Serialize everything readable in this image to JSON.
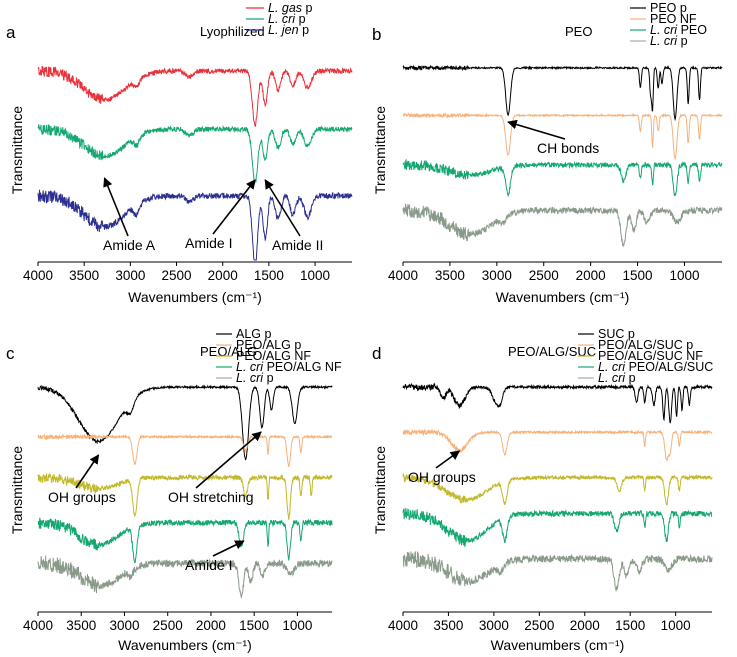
{
  "figure": {
    "panels": [
      "a",
      "b",
      "c",
      "d"
    ]
  },
  "chart_data": [
    {
      "id": "a",
      "panel_label": "a",
      "type": "line",
      "title": "Lyophilized",
      "xlabel": "Wavenumbers (cm⁻¹)",
      "ylabel": "Transmittance",
      "x_reversed": true,
      "xlim": [
        4000,
        600
      ],
      "xticks": [
        "4000",
        "3500",
        "3000",
        "2500",
        "2000",
        "1500",
        "1000"
      ],
      "xtick_values": [
        4000,
        3500,
        3000,
        2500,
        2000,
        1500,
        1000
      ],
      "legend": [
        {
          "italic": "L. gas",
          "suffix": " p",
          "color": "#e8313a"
        },
        {
          "italic": "L. cri",
          "suffix": " p",
          "color": "#14a870"
        },
        {
          "italic": "L. jen",
          "suffix": " p",
          "color": "#2b2f8f"
        }
      ],
      "series": [
        {
          "legend_index": 0,
          "color": "#e8313a",
          "baseline": 0.12,
          "noise": 0.012,
          "peaks": [
            [
              3280,
              0.14,
              220
            ],
            [
              2930,
              0.04,
              30
            ],
            [
              2360,
              0.03,
              40
            ],
            [
              1650,
              0.26,
              30
            ],
            [
              1540,
              0.16,
              25
            ],
            [
              1400,
              0.09,
              30
            ],
            [
              1240,
              0.07,
              30
            ],
            [
              1080,
              0.08,
              40
            ]
          ]
        },
        {
          "legend_index": 1,
          "color": "#14a870",
          "baseline": 0.4,
          "noise": 0.012,
          "peaks": [
            [
              3280,
              0.13,
              220
            ],
            [
              2930,
              0.04,
              30
            ],
            [
              2360,
              0.03,
              40
            ],
            [
              1650,
              0.26,
              30
            ],
            [
              1540,
              0.15,
              25
            ],
            [
              1400,
              0.09,
              30
            ],
            [
              1240,
              0.07,
              30
            ],
            [
              1080,
              0.08,
              40
            ]
          ]
        },
        {
          "legend_index": 2,
          "color": "#2b2f8f",
          "baseline": 0.72,
          "noise": 0.014,
          "peaks": [
            [
              3280,
              0.15,
              220
            ],
            [
              2930,
              0.05,
              30
            ],
            [
              2360,
              0.03,
              40
            ],
            [
              1650,
              0.34,
              28
            ],
            [
              1540,
              0.2,
              25
            ],
            [
              1400,
              0.11,
              30
            ],
            [
              1240,
              0.09,
              30
            ],
            [
              1080,
              0.1,
              40
            ]
          ]
        }
      ],
      "annotations": [
        {
          "text": "Amide A",
          "x": 3280
        },
        {
          "text": "Amide I",
          "x": 1650
        },
        {
          "text": "Amide II",
          "x": 1540
        }
      ]
    },
    {
      "id": "b",
      "panel_label": "b",
      "type": "line",
      "title": "PEO",
      "xlabel": "Wavenumbers (cm⁻¹)",
      "ylabel": "Transmittance",
      "x_reversed": true,
      "xlim": [
        4000,
        600
      ],
      "xticks": [
        "4000",
        "3500",
        "3000",
        "2500",
        "2000",
        "1500",
        "1000"
      ],
      "xtick_values": [
        4000,
        3500,
        3000,
        2500,
        2000,
        1500,
        1000
      ],
      "legend": [
        {
          "italic": "",
          "suffix": "PEO p",
          "color": "#000000"
        },
        {
          "italic": "",
          "suffix": "PEO NF",
          "color": "#f5b27a"
        },
        {
          "italic": "L. cri",
          "suffix": " PEO",
          "color": "#14a870"
        },
        {
          "italic": "L. cri",
          "suffix": " p",
          "color": "#aaaaaa"
        }
      ],
      "series": [
        {
          "legend_index": 0,
          "color": "#000000",
          "baseline": 0.06,
          "noise": 0.004,
          "peaks": [
            [
              2880,
              0.24,
              25
            ],
            [
              1470,
              0.1,
              10
            ],
            [
              1360,
              0.14,
              10
            ],
            [
              1340,
              0.2,
              8
            ],
            [
              1280,
              0.1,
              10
            ],
            [
              1240,
              0.08,
              10
            ],
            [
              1100,
              0.26,
              20
            ],
            [
              960,
              0.18,
              10
            ],
            [
              840,
              0.16,
              10
            ]
          ]
        },
        {
          "legend_index": 1,
          "color": "#f5b27a",
          "baseline": 0.3,
          "noise": 0.004,
          "peaks": [
            [
              2880,
              0.2,
              25
            ],
            [
              1470,
              0.08,
              10
            ],
            [
              1340,
              0.16,
              8
            ],
            [
              1280,
              0.08,
              10
            ],
            [
              1100,
              0.22,
              20
            ],
            [
              960,
              0.14,
              10
            ],
            [
              840,
              0.12,
              10
            ]
          ]
        },
        {
          "legend_index": 2,
          "color": "#14a870",
          "baseline": 0.55,
          "noise": 0.012,
          "peaks": [
            [
              3280,
              0.05,
              220
            ],
            [
              2880,
              0.14,
              25
            ],
            [
              1650,
              0.08,
              25
            ],
            [
              1470,
              0.07,
              10
            ],
            [
              1340,
              0.1,
              8
            ],
            [
              1100,
              0.16,
              20
            ],
            [
              960,
              0.09,
              10
            ],
            [
              840,
              0.08,
              10
            ]
          ]
        },
        {
          "legend_index": 3,
          "color": "#8a9a8a",
          "baseline": 0.78,
          "noise": 0.016,
          "peaks": [
            [
              3280,
              0.12,
              220
            ],
            [
              2930,
              0.03,
              30
            ],
            [
              1650,
              0.18,
              28
            ],
            [
              1540,
              0.1,
              25
            ],
            [
              1400,
              0.06,
              30
            ],
            [
              1080,
              0.06,
              40
            ]
          ]
        }
      ],
      "annotations": [
        {
          "text": "CH bonds",
          "x": 2880
        }
      ]
    },
    {
      "id": "c",
      "panel_label": "c",
      "type": "line",
      "title": "PEO/ALG",
      "xlabel": "Wavenumbers (cm⁻¹)",
      "ylabel": "Transmittance",
      "x_reversed": true,
      "xlim": [
        4000,
        600
      ],
      "xticks": [
        "4000",
        "3500",
        "3000",
        "2500",
        "2000",
        "1500",
        "1000"
      ],
      "xtick_values": [
        4000,
        3500,
        3000,
        2500,
        2000,
        1500,
        1000
      ],
      "legend": [
        {
          "italic": "",
          "suffix": "ALG p",
          "color": "#000000"
        },
        {
          "italic": "",
          "suffix": "PEO/ALG p",
          "color": "#f5b27a"
        },
        {
          "italic": "",
          "suffix": "PEO/ALG NF",
          "color": "#c2b82a"
        },
        {
          "italic": "L. cri",
          "suffix": " PEO/ALG NF",
          "color": "#14a870"
        },
        {
          "italic": "L. cri",
          "suffix": " p",
          "color": "#aaaaaa"
        }
      ],
      "series": [
        {
          "legend_index": 0,
          "color": "#000000",
          "baseline": 0.04,
          "noise": 0.004,
          "peaks": [
            [
              3300,
              0.24,
              230
            ],
            [
              2930,
              0.05,
              40
            ],
            [
              1600,
              0.32,
              35
            ],
            [
              1410,
              0.18,
              25
            ],
            [
              1300,
              0.1,
              20
            ],
            [
              1030,
              0.16,
              30
            ]
          ]
        },
        {
          "legend_index": 1,
          "color": "#f5b27a",
          "baseline": 0.26,
          "noise": 0.004,
          "peaks": [
            [
              2880,
              0.12,
              25
            ],
            [
              1600,
              0.06,
              25
            ],
            [
              1340,
              0.08,
              8
            ],
            [
              1100,
              0.13,
              20
            ],
            [
              960,
              0.07,
              10
            ]
          ]
        },
        {
          "legend_index": 2,
          "color": "#c2b82a",
          "baseline": 0.44,
          "noise": 0.01,
          "peaks": [
            [
              3300,
              0.05,
              220
            ],
            [
              2880,
              0.16,
              25
            ],
            [
              1600,
              0.08,
              25
            ],
            [
              1340,
              0.1,
              8
            ],
            [
              1100,
              0.18,
              20
            ],
            [
              960,
              0.09,
              10
            ],
            [
              840,
              0.08,
              10
            ]
          ]
        },
        {
          "legend_index": 3,
          "color": "#14a870",
          "baseline": 0.64,
          "noise": 0.012,
          "peaks": [
            [
              3300,
              0.1,
              220
            ],
            [
              2880,
              0.16,
              25
            ],
            [
              1650,
              0.1,
              25
            ],
            [
              1340,
              0.1,
              8
            ],
            [
              1100,
              0.16,
              20
            ],
            [
              960,
              0.08,
              10
            ]
          ]
        },
        {
          "legend_index": 4,
          "color": "#8a9a8a",
          "baseline": 0.82,
          "noise": 0.016,
          "peaks": [
            [
              3280,
              0.1,
              220
            ],
            [
              2930,
              0.03,
              30
            ],
            [
              1650,
              0.14,
              28
            ],
            [
              1540,
              0.08,
              25
            ],
            [
              1400,
              0.05,
              30
            ],
            [
              1080,
              0.05,
              40
            ]
          ]
        }
      ],
      "annotations": [
        {
          "text": "OH groups",
          "x": 3300
        },
        {
          "text": "OH stretching",
          "x": 1420
        },
        {
          "text": "Amide I",
          "x": 1620
        }
      ]
    },
    {
      "id": "d",
      "panel_label": "d",
      "type": "line",
      "title": "PEO/ALG/SUC",
      "xlabel": "Wavenumbers (cm⁻¹)",
      "ylabel": "Transmittance",
      "x_reversed": true,
      "xlim": [
        4000,
        600
      ],
      "xticks": [
        "4000",
        "3500",
        "3000",
        "2500",
        "2000",
        "1500",
        "1000"
      ],
      "xtick_values": [
        4000,
        3500,
        3000,
        2500,
        2000,
        1500,
        1000
      ],
      "legend": [
        {
          "italic": "",
          "suffix": "SUC p",
          "color": "#000000"
        },
        {
          "italic": "",
          "suffix": "PEO/ALG/SUC p",
          "color": "#f5b27a"
        },
        {
          "italic": "",
          "suffix": "PEO/ALG/SUC NF",
          "color": "#c2b82a"
        },
        {
          "italic": "L. cri",
          "suffix": " PEO/ALG/SUC",
          "color": "#14a870"
        },
        {
          "italic": "L. cri",
          "suffix": " p",
          "color": "#aaaaaa"
        }
      ],
      "series": [
        {
          "legend_index": 0,
          "color": "#000000",
          "baseline": 0.04,
          "noise": 0.006,
          "peaks": [
            [
              3560,
              0.05,
              30
            ],
            [
              3380,
              0.08,
              60
            ],
            [
              2980,
              0.06,
              40
            ],
            [
              2930,
              0.05,
              30
            ],
            [
              1430,
              0.07,
              15
            ],
            [
              1340,
              0.07,
              10
            ],
            [
              1240,
              0.08,
              15
            ],
            [
              1130,
              0.14,
              12
            ],
            [
              1060,
              0.16,
              15
            ],
            [
              990,
              0.13,
              10
            ],
            [
              930,
              0.1,
              10
            ],
            [
              850,
              0.08,
              10
            ]
          ]
        },
        {
          "legend_index": 1,
          "color": "#f5b27a",
          "baseline": 0.24,
          "noise": 0.005,
          "peaks": [
            [
              3380,
              0.08,
              90
            ],
            [
              2880,
              0.1,
              25
            ],
            [
              1340,
              0.06,
              8
            ],
            [
              1100,
              0.12,
              20
            ],
            [
              1060,
              0.08,
              15
            ],
            [
              960,
              0.06,
              10
            ]
          ]
        },
        {
          "legend_index": 2,
          "color": "#c2b82a",
          "baseline": 0.44,
          "noise": 0.008,
          "peaks": [
            [
              3300,
              0.1,
              220
            ],
            [
              2880,
              0.1,
              25
            ],
            [
              1620,
              0.06,
              25
            ],
            [
              1340,
              0.06,
              8
            ],
            [
              1100,
              0.12,
              20
            ],
            [
              960,
              0.06,
              10
            ]
          ]
        },
        {
          "legend_index": 3,
          "color": "#14a870",
          "baseline": 0.6,
          "noise": 0.012,
          "peaks": [
            [
              3300,
              0.12,
              220
            ],
            [
              2880,
              0.1,
              25
            ],
            [
              1650,
              0.08,
              25
            ],
            [
              1340,
              0.06,
              8
            ],
            [
              1100,
              0.12,
              20
            ],
            [
              960,
              0.06,
              10
            ]
          ]
        },
        {
          "legend_index": 4,
          "color": "#8a9a8a",
          "baseline": 0.8,
          "noise": 0.016,
          "peaks": [
            [
              3280,
              0.1,
              220
            ],
            [
              2930,
              0.03,
              30
            ],
            [
              1650,
              0.14,
              28
            ],
            [
              1540,
              0.08,
              25
            ],
            [
              1400,
              0.05,
              30
            ],
            [
              1080,
              0.05,
              40
            ]
          ]
        }
      ],
      "annotations": [
        {
          "text": "OH groups",
          "x": 3380
        }
      ]
    }
  ]
}
